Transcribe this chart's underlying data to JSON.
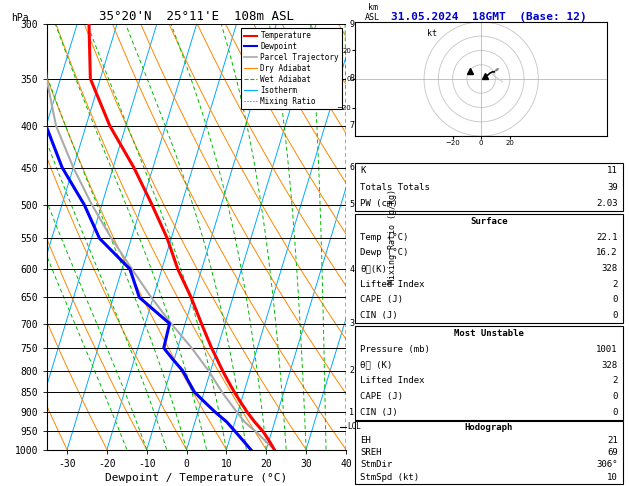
{
  "title_left": "35°20'N  25°11'E  108m ASL",
  "title_right": "31.05.2024  18GMT  (Base: 12)",
  "xlabel": "Dewpoint / Temperature (°C)",
  "ylabel_left": "hPa",
  "p_levels": [
    300,
    350,
    400,
    450,
    500,
    550,
    600,
    650,
    700,
    750,
    800,
    850,
    900,
    950,
    1000
  ],
  "p_min": 300,
  "p_max": 1000,
  "T_min": -35,
  "T_max": 40,
  "skew_factor": 32.5,
  "mixing_ratio_lines": [
    1,
    2,
    3,
    4,
    5,
    6,
    8,
    10,
    15,
    20,
    25
  ],
  "temp_profile": {
    "pressure": [
      1001,
      975,
      950,
      925,
      900,
      875,
      850,
      825,
      800,
      775,
      750,
      700,
      650,
      600,
      550,
      500,
      450,
      400,
      350,
      300
    ],
    "temperature": [
      22.1,
      20.0,
      17.8,
      15.0,
      12.4,
      10.0,
      7.6,
      5.3,
      3.0,
      0.8,
      -1.5,
      -5.9,
      -10.5,
      -16.0,
      -21.0,
      -27.4,
      -34.8,
      -44.0,
      -52.5,
      -57.0
    ]
  },
  "dewp_profile": {
    "pressure": [
      1001,
      975,
      950,
      925,
      900,
      875,
      850,
      825,
      800,
      775,
      750,
      700,
      650,
      600,
      550,
      500,
      450,
      400,
      350,
      300
    ],
    "temperature": [
      16.2,
      13.5,
      10.8,
      8.0,
      4.4,
      1.0,
      -2.4,
      -4.7,
      -7.0,
      -10.3,
      -13.5,
      -13.9,
      -23.5,
      -28.0,
      -38.0,
      -44.4,
      -52.8,
      -60.0,
      -66.5,
      -73.0
    ]
  },
  "parcel_profile": {
    "pressure": [
      1001,
      975,
      950,
      940,
      925,
      900,
      875,
      850,
      800,
      750,
      700,
      650,
      600,
      550,
      500,
      450,
      400,
      350,
      300
    ],
    "temperature": [
      22.1,
      19.0,
      16.0,
      14.5,
      12.5,
      9.8,
      7.2,
      4.5,
      -0.5,
      -6.5,
      -13.5,
      -20.5,
      -27.5,
      -35.0,
      -42.5,
      -50.0,
      -57.5,
      -63.5,
      -68.5
    ]
  },
  "lcl_pressure": 937,
  "wind_levels": [
    1000,
    950,
    900,
    850,
    800,
    750,
    700,
    650,
    600,
    550,
    500,
    450,
    400,
    350,
    300
  ],
  "wind_u": [
    3,
    5,
    6,
    8,
    9,
    10,
    11,
    12,
    11,
    10,
    9,
    8,
    7,
    6,
    5
  ],
  "wind_v": [
    2,
    3,
    4,
    5,
    5,
    6,
    7,
    7,
    6,
    5,
    4,
    3,
    2,
    1,
    0
  ],
  "km_asl_ticks": {
    "300": 9,
    "350": 8,
    "400": 7,
    "450": 6,
    "500": 5,
    "600": 4,
    "700": 3,
    "800": 2,
    "900": 1
  },
  "color_temp": "#ff0000",
  "color_dewp": "#0000ff",
  "color_parcel": "#aaaaaa",
  "color_dry_adiabat": "#ff8800",
  "color_wet_adiabat": "#00bb00",
  "color_isotherm": "#00aaff",
  "color_mixing_ratio": "#ff00ff",
  "color_background": "#ffffff",
  "info_K": 11,
  "info_TT": 39,
  "info_PW": "2.03",
  "sfc_temp": "22.1",
  "sfc_dewp": "16.2",
  "sfc_thetae": 328,
  "sfc_li": 2,
  "sfc_cape": 0,
  "sfc_cin": 0,
  "mu_pressure": 1001,
  "mu_thetae": 328,
  "mu_li": 2,
  "mu_cape": 0,
  "mu_cin": 0,
  "hodo_EH": 21,
  "hodo_SREH": 69,
  "hodo_StmDir": "306°",
  "hodo_StmSpd": 10
}
